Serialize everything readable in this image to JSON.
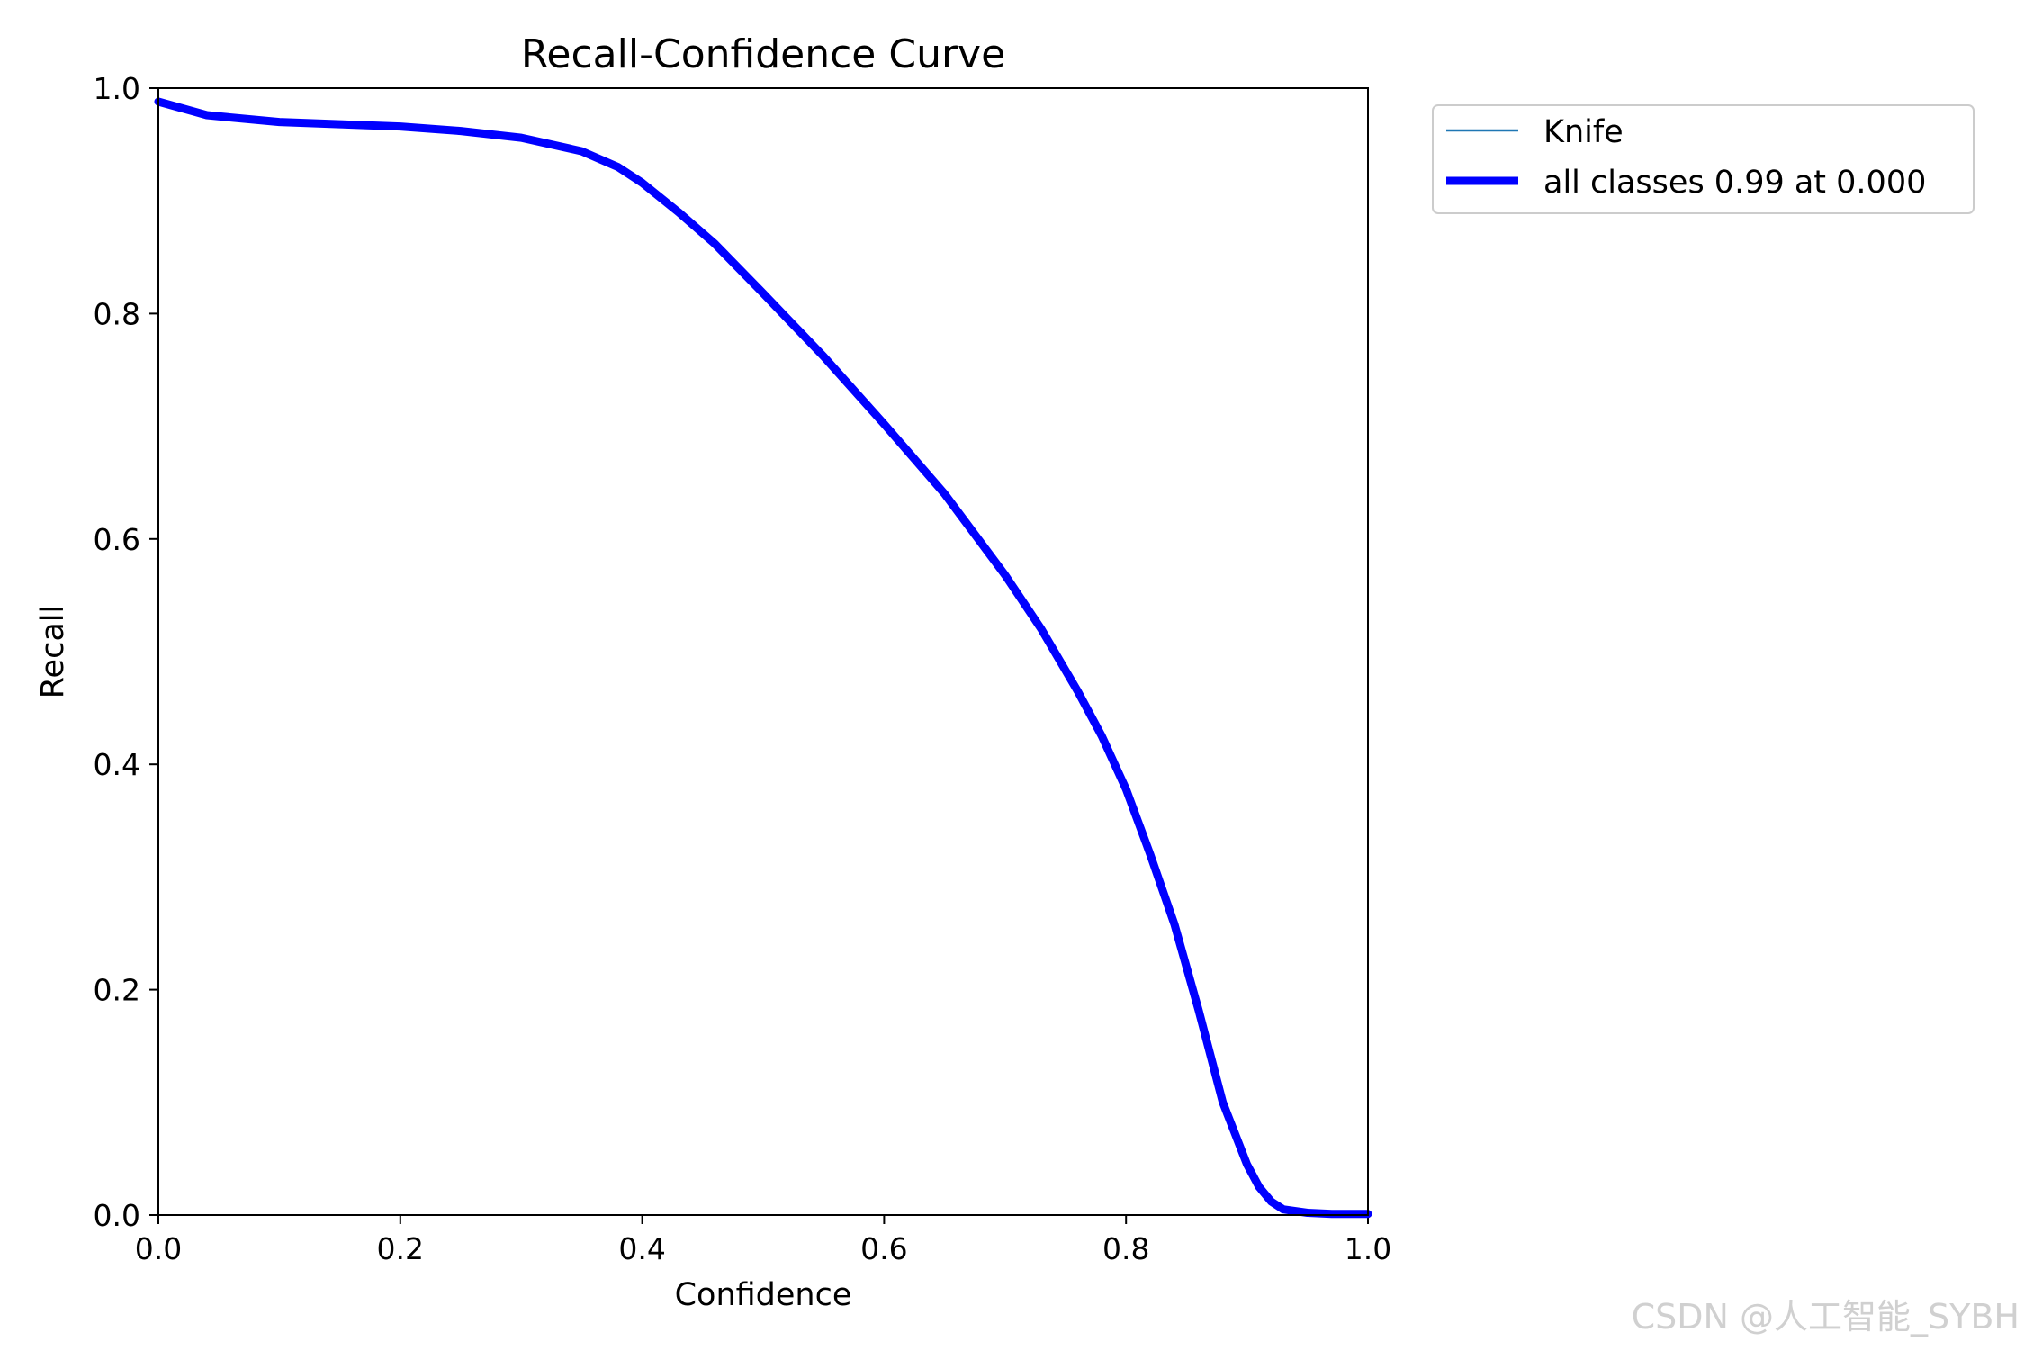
{
  "chart_data": {
    "type": "line",
    "title": "Recall-Confidence Curve",
    "xlabel": "Confidence",
    "ylabel": "Recall",
    "xlim": [
      0.0,
      1.0
    ],
    "ylim": [
      0.0,
      1.0
    ],
    "xticks": [
      "0.0",
      "0.2",
      "0.4",
      "0.6",
      "0.8",
      "1.0"
    ],
    "yticks": [
      "0.0",
      "0.2",
      "0.4",
      "0.6",
      "0.8",
      "1.0"
    ],
    "grid": false,
    "legend_position": "outside-top-right",
    "series": [
      {
        "name": "Knife",
        "color": "#1f77b4",
        "line": "thin",
        "x": [
          0.0,
          0.02,
          0.04,
          0.06,
          0.08,
          0.1,
          0.15,
          0.2,
          0.25,
          0.3,
          0.35,
          0.38,
          0.4,
          0.43,
          0.46,
          0.5,
          0.55,
          0.6,
          0.65,
          0.7,
          0.73,
          0.76,
          0.78,
          0.8,
          0.82,
          0.84,
          0.86,
          0.88,
          0.9,
          0.91,
          0.92,
          0.93,
          0.95,
          0.97,
          1.0
        ],
        "y": [
          0.988,
          0.982,
          0.976,
          0.974,
          0.972,
          0.97,
          0.968,
          0.966,
          0.962,
          0.956,
          0.944,
          0.93,
          0.916,
          0.89,
          0.862,
          0.818,
          0.762,
          0.702,
          0.64,
          0.568,
          0.52,
          0.465,
          0.425,
          0.378,
          0.32,
          0.258,
          0.182,
          0.1,
          0.045,
          0.022,
          0.01,
          0.004,
          0.002,
          0.001,
          0.001
        ]
      },
      {
        "name": "all classes 0.99 at 0.000",
        "color": "#0000ff",
        "line": "thick",
        "x": [
          0.0,
          0.02,
          0.04,
          0.06,
          0.08,
          0.1,
          0.15,
          0.2,
          0.25,
          0.3,
          0.35,
          0.38,
          0.4,
          0.43,
          0.46,
          0.5,
          0.55,
          0.6,
          0.65,
          0.7,
          0.73,
          0.76,
          0.78,
          0.8,
          0.82,
          0.84,
          0.86,
          0.88,
          0.9,
          0.91,
          0.92,
          0.93,
          0.95,
          0.97,
          1.0
        ],
        "y": [
          0.988,
          0.982,
          0.976,
          0.974,
          0.972,
          0.97,
          0.968,
          0.966,
          0.962,
          0.956,
          0.944,
          0.93,
          0.916,
          0.89,
          0.862,
          0.818,
          0.762,
          0.702,
          0.64,
          0.568,
          0.52,
          0.465,
          0.425,
          0.378,
          0.32,
          0.258,
          0.182,
          0.1,
          0.045,
          0.025,
          0.012,
          0.005,
          0.002,
          0.001,
          0.001
        ]
      }
    ]
  },
  "watermark": "CSDN @人工智能_SYBH"
}
